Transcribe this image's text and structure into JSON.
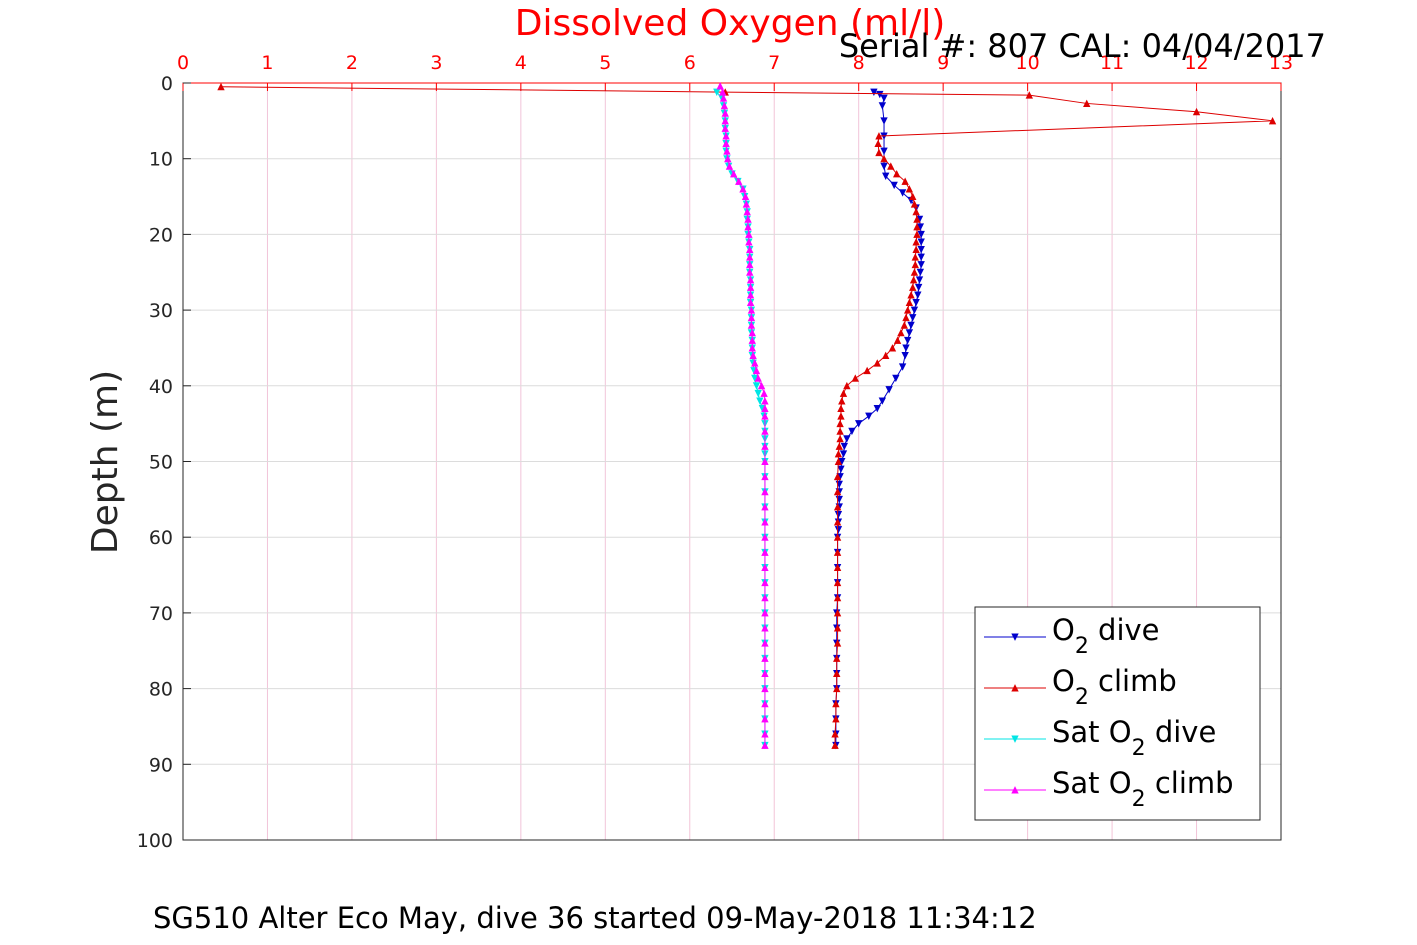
{
  "chart_data": {
    "type": "line",
    "title": "Dissolved Oxygen (ml/l)",
    "subtitle": "Serial #: 807  CAL: 04/04/2017",
    "footer": "SG510 Alter Eco May, dive 36 started 09-May-2018 11:34:12",
    "xlabel": "",
    "ylabel": "Depth (m)",
    "xlim": [
      0,
      13
    ],
    "ylim": [
      0,
      100
    ],
    "y_reversed": true,
    "x_axis_position": "top",
    "x_ticks": [
      "0",
      "1",
      "2",
      "3",
      "4",
      "5",
      "6",
      "7",
      "8",
      "9",
      "10",
      "11",
      "12",
      "13"
    ],
    "y_ticks": [
      "0",
      "10",
      "20",
      "30",
      "40",
      "50",
      "60",
      "70",
      "80",
      "90",
      "100"
    ],
    "grid": true,
    "legend_position": "bottom-right",
    "colors": {
      "title": "#ff0000",
      "x_axis": "#ff0000",
      "grid": "#f2c4d8"
    },
    "series": [
      {
        "name": "O2 dive",
        "legend_main": "O",
        "legend_sub": "2",
        "legend_rest": " dive",
        "color": "#0000cc",
        "marker": "down-triangle",
        "points": [
          [
            8.18,
            1.2
          ],
          [
            8.25,
            1.5
          ],
          [
            8.3,
            2
          ],
          [
            8.28,
            3
          ],
          [
            8.3,
            5
          ],
          [
            8.3,
            7
          ],
          [
            8.3,
            9
          ],
          [
            8.3,
            11
          ],
          [
            8.32,
            12.3
          ],
          [
            8.42,
            13.5
          ],
          [
            8.52,
            14.5
          ],
          [
            8.62,
            15.5
          ],
          [
            8.68,
            16.5
          ],
          [
            8.72,
            18
          ],
          [
            8.73,
            19
          ],
          [
            8.74,
            20
          ],
          [
            8.74,
            21
          ],
          [
            8.74,
            22
          ],
          [
            8.74,
            23
          ],
          [
            8.74,
            24
          ],
          [
            8.73,
            25
          ],
          [
            8.72,
            26
          ],
          [
            8.71,
            27
          ],
          [
            8.7,
            28
          ],
          [
            8.68,
            29
          ],
          [
            8.66,
            30
          ],
          [
            8.64,
            31
          ],
          [
            8.62,
            32
          ],
          [
            8.6,
            33
          ],
          [
            8.58,
            34
          ],
          [
            8.56,
            35
          ],
          [
            8.55,
            36
          ],
          [
            8.52,
            37.5
          ],
          [
            8.44,
            39
          ],
          [
            8.36,
            40.5
          ],
          [
            8.28,
            42
          ],
          [
            8.22,
            43
          ],
          [
            8.12,
            44
          ],
          [
            8.0,
            45
          ],
          [
            7.92,
            46
          ],
          [
            7.86,
            47
          ],
          [
            7.83,
            48
          ],
          [
            7.82,
            49
          ],
          [
            7.8,
            50
          ],
          [
            7.79,
            51
          ],
          [
            7.78,
            52
          ],
          [
            7.77,
            53
          ],
          [
            7.77,
            54
          ],
          [
            7.77,
            55
          ],
          [
            7.77,
            56
          ],
          [
            7.76,
            57
          ],
          [
            7.76,
            58
          ],
          [
            7.76,
            59
          ],
          [
            7.75,
            60
          ],
          [
            7.75,
            62
          ],
          [
            7.75,
            64
          ],
          [
            7.75,
            66
          ],
          [
            7.75,
            68
          ],
          [
            7.74,
            70
          ],
          [
            7.74,
            72
          ],
          [
            7.74,
            74
          ],
          [
            7.74,
            76
          ],
          [
            7.74,
            78
          ],
          [
            7.74,
            80
          ],
          [
            7.73,
            82
          ],
          [
            7.73,
            84
          ],
          [
            7.73,
            86
          ],
          [
            7.73,
            87.5
          ]
        ]
      },
      {
        "name": "O2 climb",
        "legend_main": "O",
        "legend_sub": "2",
        "legend_rest": " climb",
        "color": "#dd0000",
        "marker": "up-triangle",
        "points": [
          [
            7.72,
            87.5
          ],
          [
            7.72,
            86
          ],
          [
            7.73,
            84
          ],
          [
            7.73,
            82
          ],
          [
            7.74,
            80
          ],
          [
            7.74,
            78
          ],
          [
            7.74,
            76
          ],
          [
            7.75,
            74
          ],
          [
            7.75,
            72
          ],
          [
            7.75,
            70
          ],
          [
            7.75,
            68
          ],
          [
            7.75,
            66
          ],
          [
            7.75,
            64
          ],
          [
            7.75,
            62
          ],
          [
            7.75,
            60
          ],
          [
            7.75,
            58
          ],
          [
            7.75,
            56
          ],
          [
            7.75,
            54
          ],
          [
            7.75,
            52
          ],
          [
            7.76,
            50
          ],
          [
            7.76,
            49
          ],
          [
            7.77,
            48
          ],
          [
            7.78,
            47
          ],
          [
            7.78,
            46
          ],
          [
            7.78,
            45
          ],
          [
            7.79,
            44
          ],
          [
            7.79,
            43
          ],
          [
            7.8,
            42
          ],
          [
            7.82,
            41
          ],
          [
            7.86,
            40
          ],
          [
            7.96,
            39
          ],
          [
            8.1,
            38
          ],
          [
            8.22,
            37
          ],
          [
            8.32,
            36
          ],
          [
            8.4,
            35
          ],
          [
            8.46,
            34
          ],
          [
            8.5,
            33
          ],
          [
            8.54,
            32
          ],
          [
            8.56,
            31
          ],
          [
            8.58,
            30
          ],
          [
            8.6,
            29
          ],
          [
            8.62,
            28
          ],
          [
            8.64,
            27
          ],
          [
            8.65,
            26
          ],
          [
            8.66,
            25
          ],
          [
            8.67,
            24
          ],
          [
            8.67,
            23
          ],
          [
            8.68,
            22
          ],
          [
            8.68,
            21
          ],
          [
            8.69,
            20
          ],
          [
            8.69,
            19
          ],
          [
            8.69,
            18
          ],
          [
            8.68,
            17
          ],
          [
            8.66,
            16
          ],
          [
            8.64,
            15
          ],
          [
            8.6,
            14
          ],
          [
            8.55,
            13
          ],
          [
            8.45,
            12
          ],
          [
            8.38,
            11
          ],
          [
            8.3,
            10
          ],
          [
            8.24,
            9.2
          ],
          [
            8.23,
            8
          ],
          [
            8.24,
            7
          ],
          [
            12.9,
            5
          ],
          [
            12.0,
            3.8
          ],
          [
            10.7,
            2.7
          ],
          [
            10.02,
            1.6
          ],
          [
            6.42,
            1.2
          ],
          [
            0.45,
            0.5
          ]
        ]
      },
      {
        "name": "Sat O2 dive",
        "legend_main": "Sat O",
        "legend_sub": "2",
        "legend_rest": " dive",
        "color": "#00e5e5",
        "marker": "down-triangle",
        "points": [
          [
            6.32,
            1.2
          ],
          [
            6.38,
            2
          ],
          [
            6.4,
            3
          ],
          [
            6.41,
            4
          ],
          [
            6.42,
            5
          ],
          [
            6.42,
            6
          ],
          [
            6.43,
            7
          ],
          [
            6.43,
            8
          ],
          [
            6.43,
            9
          ],
          [
            6.44,
            10
          ],
          [
            6.46,
            11
          ],
          [
            6.5,
            12
          ],
          [
            6.57,
            13
          ],
          [
            6.63,
            14
          ],
          [
            6.65,
            15
          ],
          [
            6.67,
            16
          ],
          [
            6.68,
            17
          ],
          [
            6.68,
            18
          ],
          [
            6.69,
            19
          ],
          [
            6.69,
            20
          ],
          [
            6.7,
            21
          ],
          [
            6.71,
            22
          ],
          [
            6.71,
            23
          ],
          [
            6.71,
            24
          ],
          [
            6.71,
            25
          ],
          [
            6.72,
            26
          ],
          [
            6.72,
            27
          ],
          [
            6.72,
            28
          ],
          [
            6.72,
            29
          ],
          [
            6.73,
            30
          ],
          [
            6.73,
            31
          ],
          [
            6.73,
            32
          ],
          [
            6.73,
            33
          ],
          [
            6.74,
            34
          ],
          [
            6.74,
            35
          ],
          [
            6.74,
            36
          ],
          [
            6.75,
            37
          ],
          [
            6.76,
            38
          ],
          [
            6.77,
            39
          ],
          [
            6.79,
            40
          ],
          [
            6.81,
            41
          ],
          [
            6.83,
            42
          ],
          [
            6.86,
            43
          ],
          [
            6.88,
            44
          ],
          [
            6.89,
            45
          ],
          [
            6.89,
            46
          ],
          [
            6.89,
            47
          ],
          [
            6.89,
            48
          ],
          [
            6.89,
            49
          ],
          [
            6.89,
            50
          ],
          [
            6.89,
            52
          ],
          [
            6.89,
            54
          ],
          [
            6.89,
            56
          ],
          [
            6.89,
            58
          ],
          [
            6.89,
            60
          ],
          [
            6.89,
            62
          ],
          [
            6.89,
            64
          ],
          [
            6.89,
            66
          ],
          [
            6.89,
            68
          ],
          [
            6.89,
            70
          ],
          [
            6.89,
            72
          ],
          [
            6.89,
            74
          ],
          [
            6.89,
            76
          ],
          [
            6.89,
            78
          ],
          [
            6.89,
            80
          ],
          [
            6.89,
            82
          ],
          [
            6.89,
            84
          ],
          [
            6.89,
            86
          ],
          [
            6.89,
            87.5
          ]
        ]
      },
      {
        "name": "Sat O2 climb",
        "legend_main": "Sat O",
        "legend_sub": "2",
        "legend_rest": " climb",
        "color": "#ff00ff",
        "marker": "up-triangle",
        "points": [
          [
            6.89,
            87.5
          ],
          [
            6.89,
            86
          ],
          [
            6.89,
            84
          ],
          [
            6.89,
            82
          ],
          [
            6.89,
            80
          ],
          [
            6.89,
            78
          ],
          [
            6.89,
            76
          ],
          [
            6.89,
            74
          ],
          [
            6.89,
            72
          ],
          [
            6.89,
            70
          ],
          [
            6.89,
            68
          ],
          [
            6.89,
            66
          ],
          [
            6.89,
            64
          ],
          [
            6.89,
            62
          ],
          [
            6.89,
            60
          ],
          [
            6.89,
            58
          ],
          [
            6.89,
            56
          ],
          [
            6.89,
            54
          ],
          [
            6.89,
            52
          ],
          [
            6.89,
            50
          ],
          [
            6.89,
            48
          ],
          [
            6.89,
            46
          ],
          [
            6.89,
            44
          ],
          [
            6.89,
            43
          ],
          [
            6.89,
            42
          ],
          [
            6.88,
            41
          ],
          [
            6.85,
            40
          ],
          [
            6.81,
            39
          ],
          [
            6.79,
            38
          ],
          [
            6.77,
            37
          ],
          [
            6.75,
            36
          ],
          [
            6.74,
            35
          ],
          [
            6.74,
            34
          ],
          [
            6.74,
            33
          ],
          [
            6.73,
            32
          ],
          [
            6.73,
            31
          ],
          [
            6.73,
            30
          ],
          [
            6.72,
            29
          ],
          [
            6.72,
            28
          ],
          [
            6.72,
            27
          ],
          [
            6.72,
            26
          ],
          [
            6.71,
            25
          ],
          [
            6.71,
            24
          ],
          [
            6.71,
            23
          ],
          [
            6.71,
            22
          ],
          [
            6.7,
            21
          ],
          [
            6.7,
            20
          ],
          [
            6.69,
            19
          ],
          [
            6.69,
            18
          ],
          [
            6.68,
            17
          ],
          [
            6.67,
            16
          ],
          [
            6.66,
            15
          ],
          [
            6.63,
            14
          ],
          [
            6.58,
            13
          ],
          [
            6.52,
            12
          ],
          [
            6.47,
            11
          ],
          [
            6.45,
            10
          ],
          [
            6.44,
            9
          ],
          [
            6.43,
            8
          ],
          [
            6.43,
            7
          ],
          [
            6.42,
            6
          ],
          [
            6.42,
            5
          ],
          [
            6.42,
            4
          ],
          [
            6.41,
            3
          ],
          [
            6.4,
            2
          ],
          [
            6.39,
            1.2
          ],
          [
            6.36,
            0.4
          ]
        ]
      }
    ]
  }
}
